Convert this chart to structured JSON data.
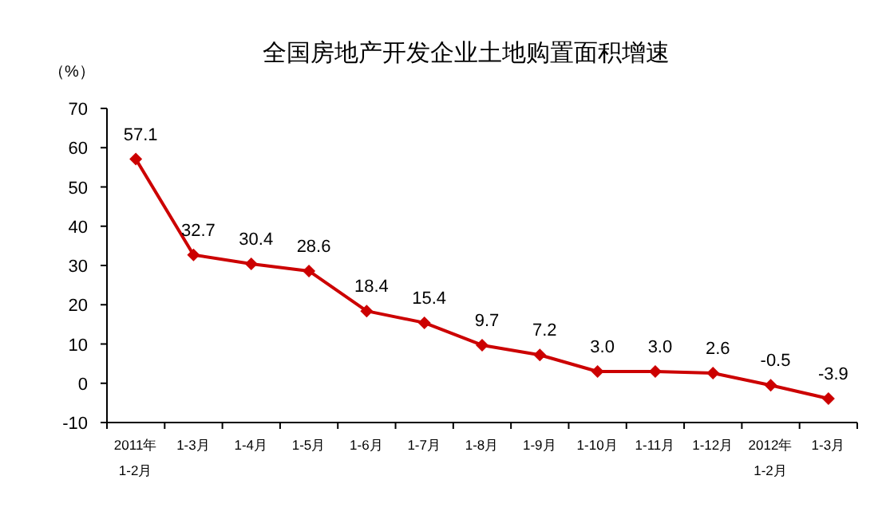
{
  "chart_data": {
    "type": "line",
    "title": "全国房地产开发企业土地购置面积增速",
    "ylabel": "（%）",
    "categories": [
      "2011年\n1-2月",
      "1-3月",
      "1-4月",
      "1-5月",
      "1-6月",
      "1-7月",
      "1-8月",
      "1-9月",
      "1-10月",
      "1-11月",
      "1-12月",
      "2012年\n1-2月",
      "1-3月"
    ],
    "series": [
      {
        "color": "#cc0000",
        "values": [
          57.1,
          32.7,
          30.4,
          28.6,
          18.4,
          15.4,
          9.7,
          7.2,
          3.0,
          3.0,
          2.6,
          -0.5,
          -3.9
        ],
        "value_labels": [
          "57.1",
          "32.7",
          "30.4",
          "28.6",
          "18.4",
          "15.4",
          "9.7",
          "7.2",
          "3.0",
          "3.0",
          "2.6",
          "-0.5",
          "-3.9"
        ]
      }
    ],
    "ylim": [
      -10,
      70
    ],
    "yticks": [
      -10,
      0,
      10,
      20,
      30,
      40,
      50,
      60,
      70
    ],
    "marker": "diamond",
    "line_style": "solid"
  }
}
